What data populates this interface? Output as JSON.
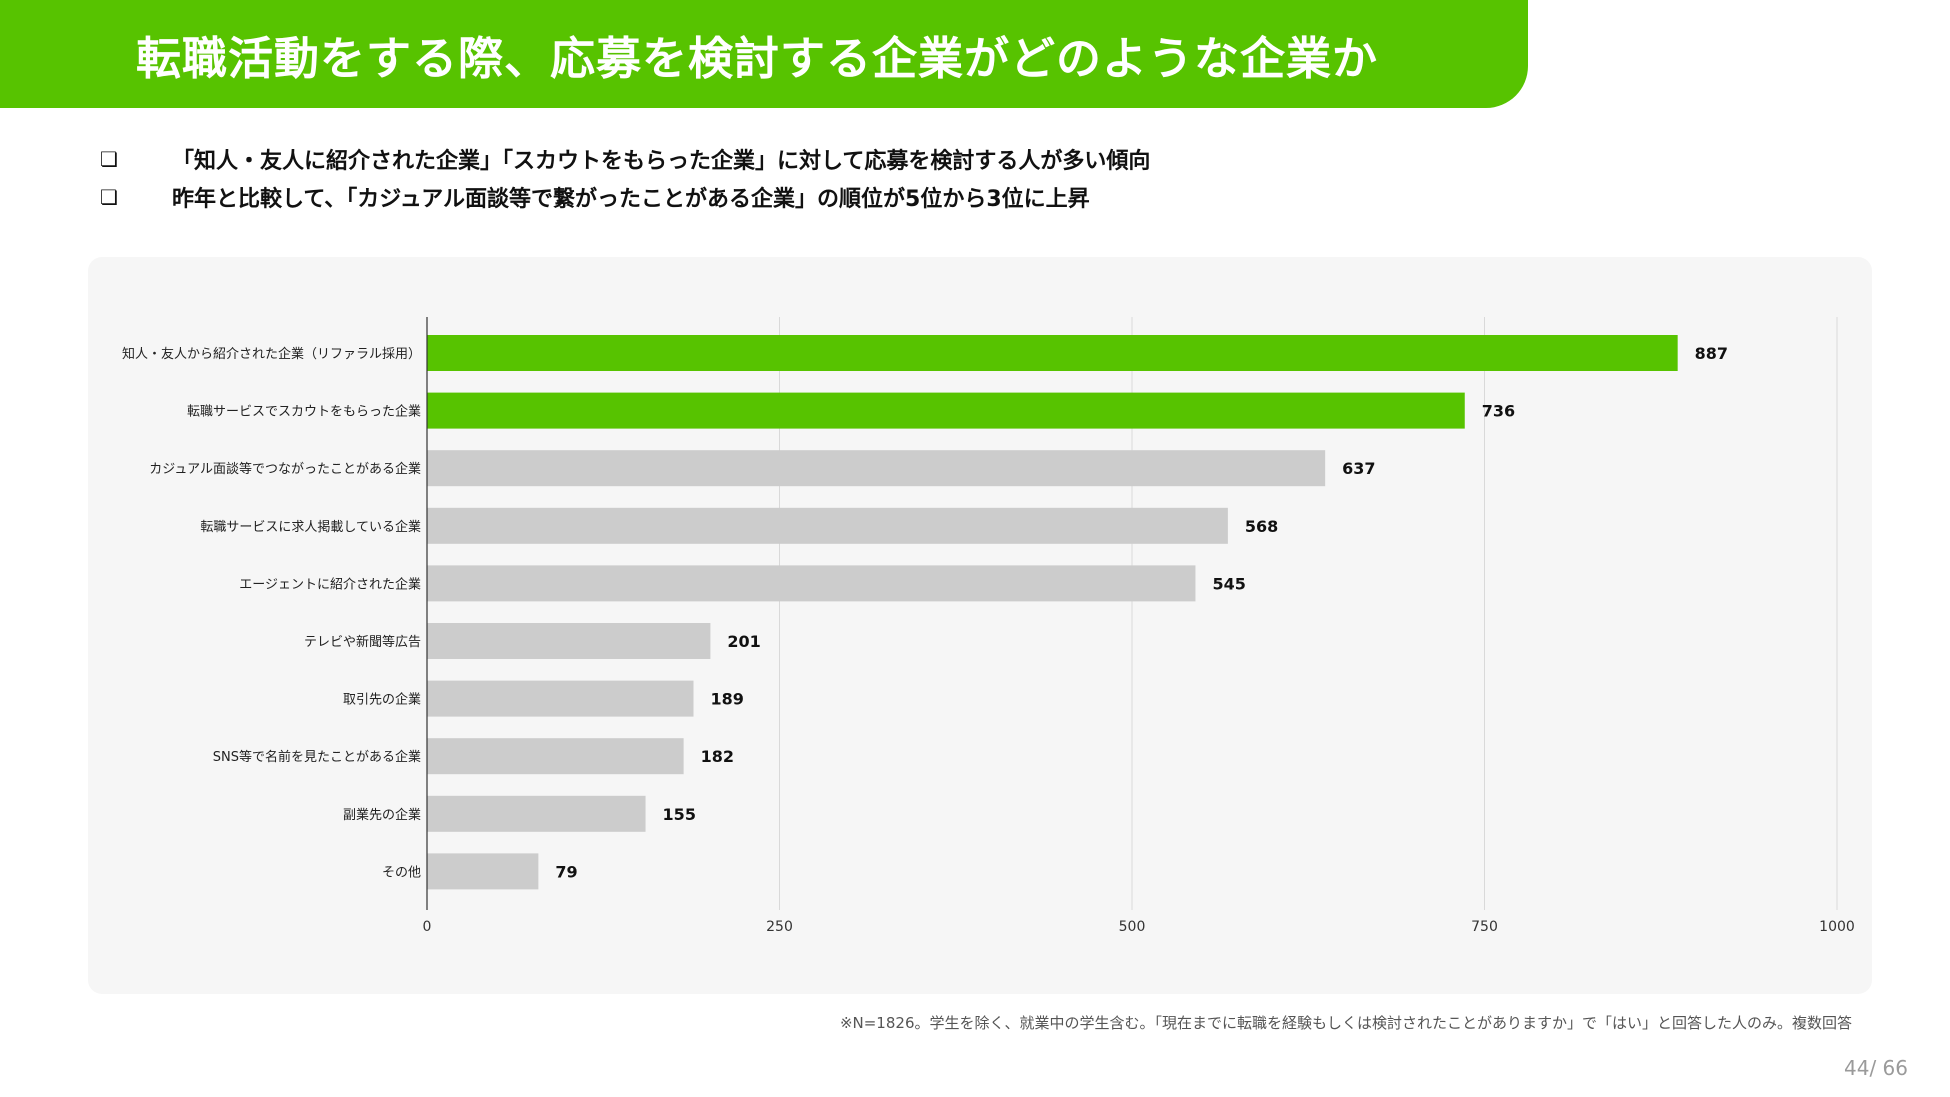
{
  "slide": {
    "title": "転職活動をする際、応募を検討する企業がどのような企業か",
    "bullets": [
      {
        "icon": "checkbox-icon",
        "glyph": "❏",
        "text": "「知人・友人に紹介された企業」「スカウトをもらった企業」に対して応募を検討する人が多い傾向"
      },
      {
        "icon": "checkbox-icon",
        "glyph": "❏",
        "text": "昨年と比較して、「カジュアル面談等で繋がったことがある企業」の順位が5位から3位に上昇"
      }
    ],
    "footnote": "※N=1826。学生を除く、就業中の学生含む。「現在までに転職を経験もしくは検討されたことがありますか」で「はい」と回答した人のみ。複数回答",
    "page": {
      "current": "44",
      "separator": "/ ",
      "total": "66"
    }
  },
  "colors": {
    "brand": "#57c300",
    "highlight_bar": "#57c300",
    "default_bar": "#cccccc",
    "card_bg": "#f6f6f6",
    "gridline": "#d9d9d9"
  },
  "chart_data": {
    "type": "bar",
    "orientation": "horizontal",
    "title": "",
    "xlabel": "",
    "ylabel": "",
    "xlim": [
      0,
      1000
    ],
    "xticks": [
      0,
      250,
      500,
      750,
      1000
    ],
    "grid": true,
    "data_labels": true,
    "categories": [
      "知人・友人から紹介された企業（リファラル採用）",
      "転職サービスでスカウトをもらった企業",
      "カジュアル面談等でつながったことがある企業",
      "転職サービスに求人掲載している企業",
      "エージェントに紹介された企業",
      "テレビや新聞等広告",
      "取引先の企業",
      "SNS等で名前を見たことがある企業",
      "副業先の企業",
      "その他"
    ],
    "values": [
      887,
      736,
      637,
      568,
      545,
      201,
      189,
      182,
      155,
      79
    ],
    "highlighted": [
      true,
      true,
      false,
      false,
      false,
      false,
      false,
      false,
      false,
      false
    ]
  }
}
